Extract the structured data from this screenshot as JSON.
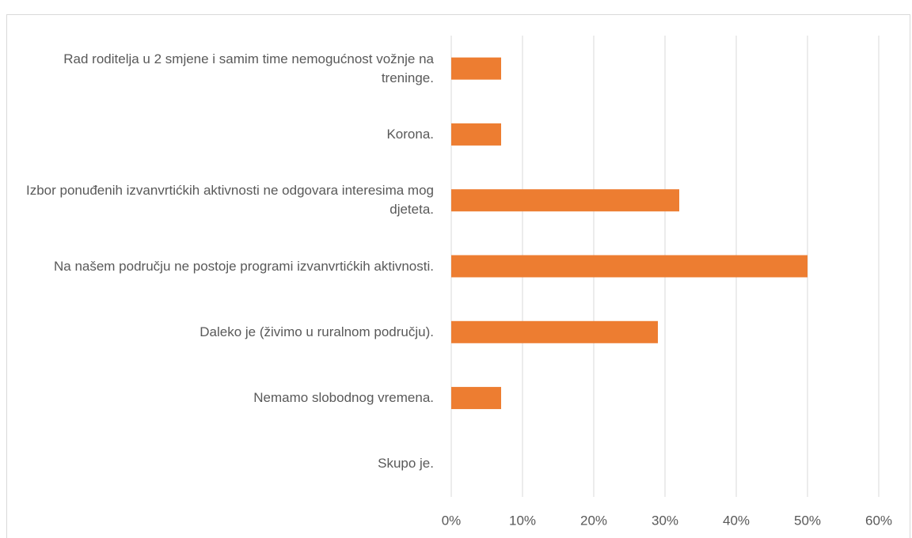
{
  "chart_data": {
    "type": "hbar",
    "categories": [
      "Rad roditelja u 2 smjene i samim time nemogućnost vožnje na treninge.",
      "Korona.",
      "Izbor ponuđenih izvanvrtićkih aktivnosti ne odgovara interesima mog djeteta.",
      "Na našem području ne postoje programi izvanvrtićkih aktivnosti.",
      "Daleko je (živimo u ruralnom području).",
      "Nemamo slobodnog vremena.",
      "Skupo je."
    ],
    "values": [
      7,
      7,
      32,
      50,
      29,
      7,
      0
    ],
    "color": "#ed7d31",
    "xlim": [
      0,
      60
    ],
    "xticks": [
      {
        "value": 0,
        "label": "0%"
      },
      {
        "value": 10,
        "label": "10%"
      },
      {
        "value": 20,
        "label": "20%"
      },
      {
        "value": 30,
        "label": "30%"
      },
      {
        "value": 40,
        "label": "40%"
      },
      {
        "value": 50,
        "label": "50%"
      },
      {
        "value": 60,
        "label": "60%"
      }
    ],
    "grid": true
  }
}
